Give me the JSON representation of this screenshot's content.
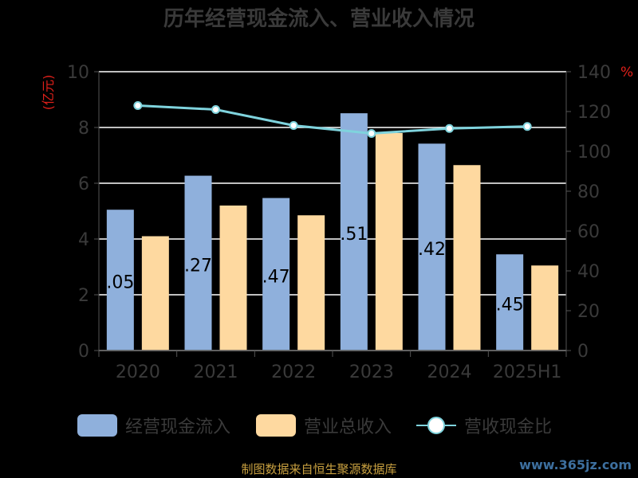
{
  "colors": {
    "background": "#000000",
    "bar_cash": "#8fb0dc",
    "bar_revenue": "#fed9a0",
    "line": "#7fd3dd",
    "grid": "#ffffff",
    "axis_text": "#3a3a3a",
    "unit_text": "#e0201a",
    "title": "#3a3a3a",
    "footer": "#c8a040",
    "watermark": "#3d6f9e"
  },
  "legend": {
    "cash_label": "经营现金流入",
    "revenue_label": "营业总收入",
    "ratio_label": "营收现金比"
  },
  "footer": {
    "source": "制图数据来自恒生聚源数据库",
    "watermark": "www.365jz.com"
  },
  "chart_data": {
    "type": "bar",
    "title": "历年经营现金流入、营业收入情况",
    "categories": [
      "2020",
      "2021",
      "2022",
      "2023",
      "2024",
      "2025H1"
    ],
    "y_left": {
      "unit": "(亿元)",
      "min": 0,
      "max": 10,
      "ticks": [
        0,
        2,
        4,
        6,
        8,
        10
      ]
    },
    "y_right": {
      "unit": "%",
      "min": 0,
      "max": 140,
      "ticks": [
        0,
        20,
        40,
        60,
        80,
        100,
        120,
        140
      ]
    },
    "grid": true,
    "legend_position": "bottom",
    "series": [
      {
        "name": "经营现金流入",
        "type": "bar",
        "axis": "left",
        "values": [
          5.05,
          6.27,
          5.47,
          8.51,
          7.42,
          3.45
        ],
        "labels": [
          ".05",
          ".27",
          ".47",
          ".51",
          ".42",
          ".45"
        ]
      },
      {
        "name": "营业总收入",
        "type": "bar",
        "axis": "left",
        "values": [
          4.1,
          5.2,
          4.85,
          7.8,
          6.65,
          3.05
        ]
      },
      {
        "name": "营收现金比",
        "type": "line",
        "axis": "right",
        "values": [
          123,
          121,
          113,
          109,
          111.5,
          112.5
        ]
      }
    ]
  }
}
